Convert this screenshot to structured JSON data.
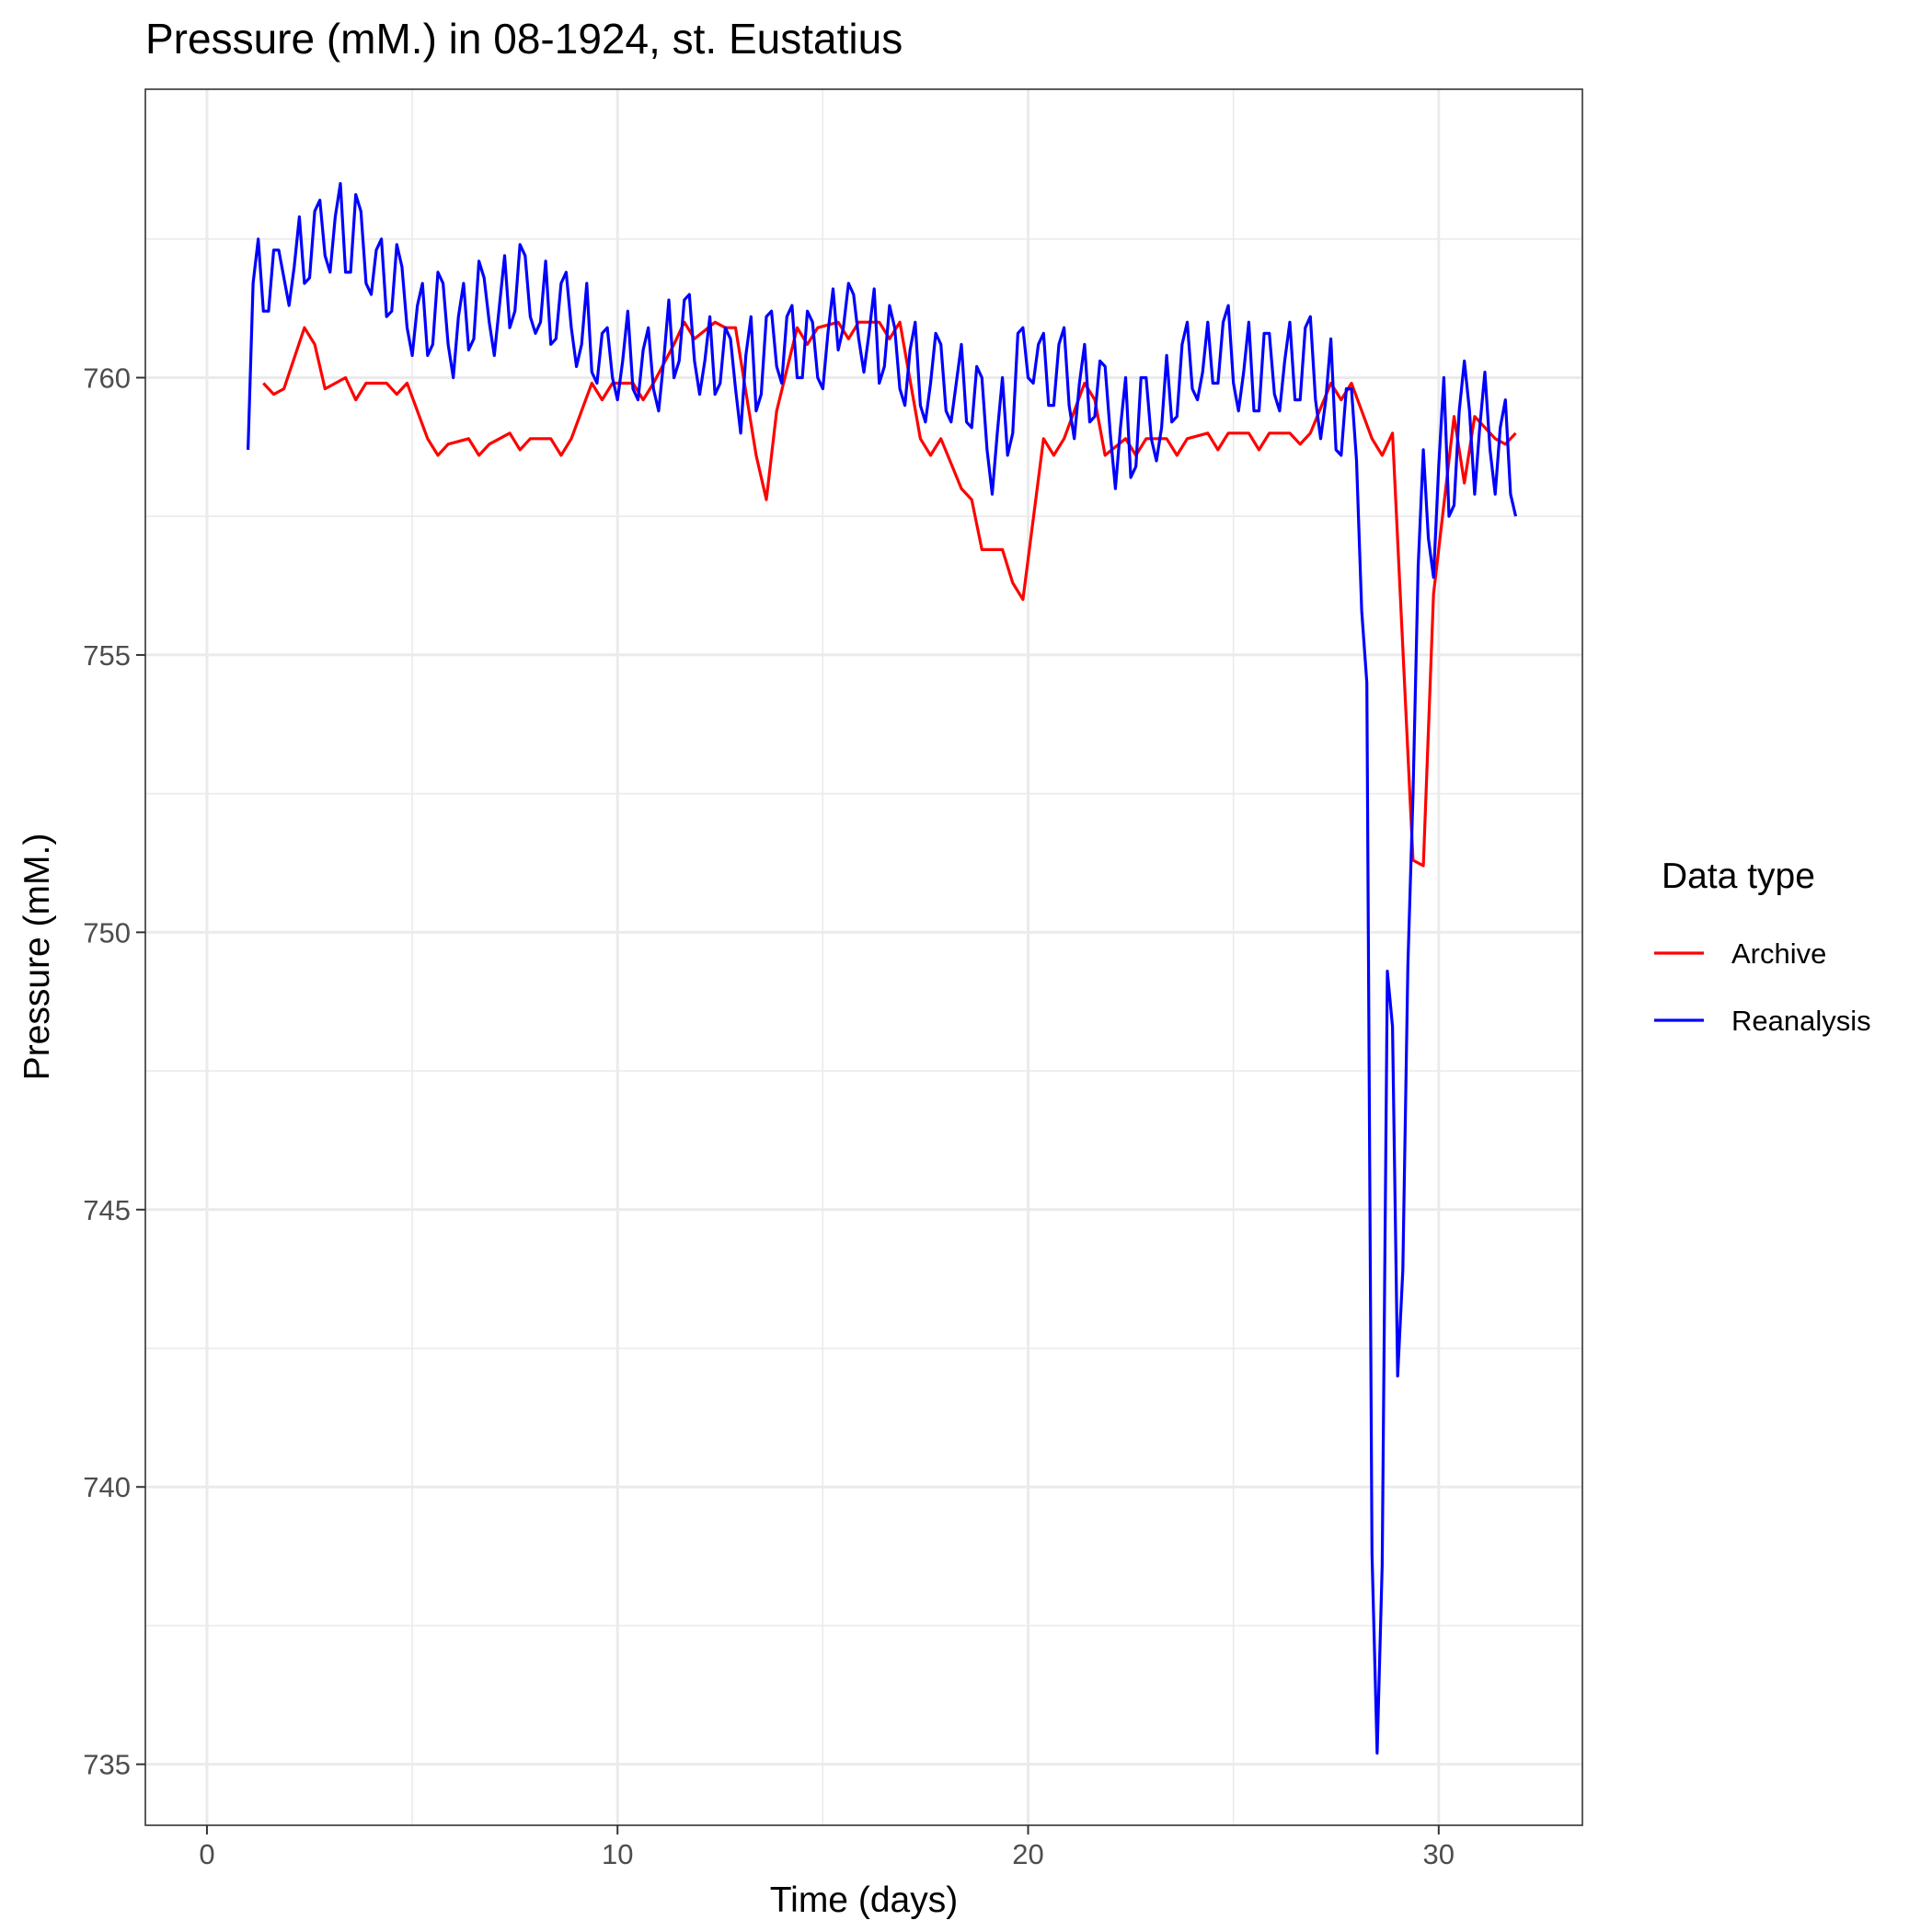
{
  "chart_data": {
    "type": "line",
    "title": "Pressure (mM.) in 08-1924, st. Eustatius",
    "xlabel": "Time (days)",
    "ylabel": "Pressure (mM.)",
    "xlim": [
      -1.5,
      33.5
    ],
    "ylim": [
      733.9,
      765.2
    ],
    "x_ticks": [
      0,
      10,
      20,
      30
    ],
    "y_ticks": [
      735,
      740,
      745,
      750,
      755,
      760
    ],
    "grid": true,
    "legend": {
      "title": "Data type",
      "position": "right"
    },
    "series": [
      {
        "name": "Archive",
        "color": "#ff0000",
        "x": [
          1.375,
          1.625,
          1.875,
          2.375,
          2.625,
          2.875,
          3.375,
          3.625,
          3.875,
          4.375,
          4.625,
          4.875,
          5.375,
          5.625,
          5.875,
          6.375,
          6.625,
          6.875,
          7.375,
          7.625,
          7.875,
          8.375,
          8.625,
          8.875,
          9.375,
          9.625,
          9.875,
          10.375,
          10.625,
          10.875,
          11.375,
          11.625,
          11.875,
          12.375,
          12.625,
          12.875,
          13.375,
          13.625,
          13.875,
          14.375,
          14.625,
          14.875,
          15.375,
          15.625,
          15.875,
          16.375,
          16.625,
          16.875,
          17.375,
          17.625,
          17.875,
          18.375,
          18.625,
          18.875,
          19.375,
          19.625,
          19.875,
          20.375,
          20.625,
          20.875,
          21.375,
          21.625,
          21.875,
          22.375,
          22.625,
          22.875,
          23.375,
          23.625,
          23.875,
          24.375,
          24.625,
          24.875,
          25.375,
          25.625,
          25.875,
          26.375,
          26.625,
          26.875,
          27.375,
          27.625,
          27.875,
          28.375,
          28.625,
          28.875,
          29.375,
          29.625,
          29.875,
          30.375,
          30.625,
          30.875,
          31.375,
          31.625,
          31.875
        ],
        "values": [
          759.9,
          759.7,
          759.8,
          760.9,
          760.6,
          759.8,
          760.0,
          759.6,
          759.9,
          759.9,
          759.7,
          759.9,
          758.9,
          758.6,
          758.8,
          758.9,
          758.6,
          758.8,
          759.0,
          758.7,
          758.9,
          758.9,
          758.6,
          758.9,
          759.9,
          759.6,
          759.9,
          759.9,
          759.6,
          759.9,
          760.6,
          761.0,
          760.7,
          761.0,
          760.9,
          760.9,
          758.6,
          757.8,
          759.4,
          760.9,
          760.6,
          760.9,
          761.0,
          760.7,
          761.0,
          761.0,
          760.7,
          761.0,
          758.9,
          758.6,
          758.9,
          758.0,
          757.8,
          756.9,
          756.9,
          756.3,
          756.0,
          758.9,
          758.6,
          758.9,
          759.9,
          759.6,
          758.6,
          758.9,
          758.6,
          758.9,
          758.9,
          758.6,
          758.9,
          759.0,
          758.7,
          759.0,
          759.0,
          758.7,
          759.0,
          759.0,
          758.8,
          759.0,
          759.9,
          759.6,
          759.9,
          758.9,
          758.6,
          759.0,
          751.3,
          751.2,
          756.1,
          759.3,
          758.1,
          759.3,
          758.9,
          758.8,
          759.0
        ]
      },
      {
        "name": "Reanalysis",
        "color": "#0000ff",
        "x": [
          1.0,
          1.125,
          1.25,
          1.375,
          1.5,
          1.625,
          1.75,
          1.875,
          2.0,
          2.125,
          2.25,
          2.375,
          2.5,
          2.625,
          2.75,
          2.875,
          3.0,
          3.125,
          3.25,
          3.375,
          3.5,
          3.625,
          3.75,
          3.875,
          4.0,
          4.125,
          4.25,
          4.375,
          4.5,
          4.625,
          4.75,
          4.875,
          5.0,
          5.125,
          5.25,
          5.375,
          5.5,
          5.625,
          5.75,
          5.875,
          6.0,
          6.125,
          6.25,
          6.375,
          6.5,
          6.625,
          6.75,
          6.875,
          7.0,
          7.125,
          7.25,
          7.375,
          7.5,
          7.625,
          7.75,
          7.875,
          8.0,
          8.125,
          8.25,
          8.375,
          8.5,
          8.625,
          8.75,
          8.875,
          9.0,
          9.125,
          9.25,
          9.375,
          9.5,
          9.625,
          9.75,
          9.875,
          10.0,
          10.125,
          10.25,
          10.375,
          10.5,
          10.625,
          10.75,
          10.875,
          11.0,
          11.125,
          11.25,
          11.375,
          11.5,
          11.625,
          11.75,
          11.875,
          12.0,
          12.125,
          12.25,
          12.375,
          12.5,
          12.625,
          12.75,
          12.875,
          13.0,
          13.125,
          13.25,
          13.375,
          13.5,
          13.625,
          13.75,
          13.875,
          14.0,
          14.125,
          14.25,
          14.375,
          14.5,
          14.625,
          14.75,
          14.875,
          15.0,
          15.125,
          15.25,
          15.375,
          15.5,
          15.625,
          15.75,
          15.875,
          16.0,
          16.125,
          16.25,
          16.375,
          16.5,
          16.625,
          16.75,
          16.875,
          17.0,
          17.125,
          17.25,
          17.375,
          17.5,
          17.625,
          17.75,
          17.875,
          18.0,
          18.125,
          18.25,
          18.375,
          18.5,
          18.625,
          18.75,
          18.875,
          19.0,
          19.125,
          19.25,
          19.375,
          19.5,
          19.625,
          19.75,
          19.875,
          20.0,
          20.125,
          20.25,
          20.375,
          20.5,
          20.625,
          20.75,
          20.875,
          21.0,
          21.125,
          21.25,
          21.375,
          21.5,
          21.625,
          21.75,
          21.875,
          22.0,
          22.125,
          22.25,
          22.375,
          22.5,
          22.625,
          22.75,
          22.875,
          23.0,
          23.125,
          23.25,
          23.375,
          23.5,
          23.625,
          23.75,
          23.875,
          24.0,
          24.125,
          24.25,
          24.375,
          24.5,
          24.625,
          24.75,
          24.875,
          25.0,
          25.125,
          25.25,
          25.375,
          25.5,
          25.625,
          25.75,
          25.875,
          26.0,
          26.125,
          26.25,
          26.375,
          26.5,
          26.625,
          26.75,
          26.875,
          27.0,
          27.125,
          27.25,
          27.375,
          27.5,
          27.625,
          27.75,
          27.875,
          28.0,
          28.125,
          28.25,
          28.375,
          28.5,
          28.625,
          28.75,
          28.875,
          29.0,
          29.125,
          29.25,
          29.375,
          29.5,
          29.625,
          29.75,
          29.875,
          30.0,
          30.125,
          30.25,
          30.375,
          30.5,
          30.625,
          30.75,
          30.875,
          31.0,
          31.125,
          31.25,
          31.375,
          31.5,
          31.625,
          31.75,
          31.875
        ],
        "values": [
          758.7,
          761.7,
          762.5,
          761.2,
          761.2,
          762.3,
          762.3,
          761.8,
          761.3,
          762.0,
          762.9,
          761.7,
          761.8,
          763.0,
          763.2,
          762.2,
          761.9,
          762.9,
          763.5,
          761.9,
          761.9,
          763.3,
          763.0,
          761.7,
          761.5,
          762.3,
          762.5,
          761.1,
          761.2,
          762.4,
          762.0,
          760.9,
          760.4,
          761.3,
          761.7,
          760.4,
          760.6,
          761.9,
          761.7,
          760.6,
          760.0,
          761.1,
          761.7,
          760.5,
          760.7,
          762.1,
          761.8,
          761.0,
          760.4,
          761.3,
          762.2,
          760.9,
          761.2,
          762.4,
          762.2,
          761.1,
          760.8,
          761.0,
          762.1,
          760.6,
          760.7,
          761.7,
          761.9,
          760.9,
          760.2,
          760.6,
          761.7,
          760.1,
          759.9,
          760.8,
          760.9,
          760.0,
          759.6,
          760.3,
          761.2,
          759.8,
          759.6,
          760.5,
          760.9,
          759.8,
          759.4,
          760.3,
          761.4,
          760.0,
          760.3,
          761.4,
          761.5,
          760.3,
          759.7,
          760.3,
          761.1,
          759.7,
          759.9,
          760.9,
          760.7,
          759.8,
          759.0,
          760.4,
          761.1,
          759.4,
          759.7,
          761.1,
          761.2,
          760.2,
          759.9,
          761.1,
          761.3,
          760.0,
          760.0,
          761.2,
          761.0,
          760.0,
          759.8,
          760.8,
          761.6,
          760.5,
          760.9,
          761.7,
          761.5,
          760.7,
          760.1,
          760.8,
          761.6,
          759.9,
          760.2,
          761.3,
          760.9,
          759.8,
          759.5,
          760.5,
          761.0,
          759.5,
          759.2,
          759.9,
          760.8,
          760.6,
          759.4,
          759.2,
          759.9,
          760.6,
          759.2,
          759.1,
          760.2,
          760.0,
          758.7,
          757.9,
          759.0,
          760.0,
          758.6,
          759.0,
          760.8,
          760.9,
          760.0,
          759.9,
          760.6,
          760.8,
          759.5,
          759.5,
          760.6,
          760.9,
          759.5,
          758.9,
          759.9,
          760.6,
          759.2,
          759.3,
          760.3,
          760.2,
          759.0,
          758.0,
          759.1,
          760.0,
          758.2,
          758.4,
          760.0,
          760.0,
          758.9,
          758.5,
          759.1,
          760.4,
          759.2,
          759.3,
          760.6,
          761.0,
          759.8,
          759.6,
          760.1,
          761.0,
          759.9,
          759.9,
          761.0,
          761.3,
          759.9,
          759.4,
          760.1,
          761.0,
          759.4,
          759.4,
          760.8,
          760.8,
          759.7,
          759.4,
          760.3,
          761.0,
          759.6,
          759.6,
          760.9,
          761.1,
          759.6,
          758.9,
          759.6,
          760.7,
          758.7,
          758.6,
          759.8,
          759.8,
          758.5,
          755.8,
          754.5,
          738.8,
          735.2,
          738.6,
          749.3,
          748.3,
          742.0,
          743.9,
          749.4,
          752.5,
          756.6,
          758.7,
          757.1,
          756.4,
          758.4,
          760.0,
          757.5,
          757.7,
          759.4,
          760.3,
          759.4,
          757.9,
          759.1,
          760.1,
          758.7,
          757.9,
          759.1,
          759.6,
          757.9,
          757.5
        ]
      }
    ]
  }
}
